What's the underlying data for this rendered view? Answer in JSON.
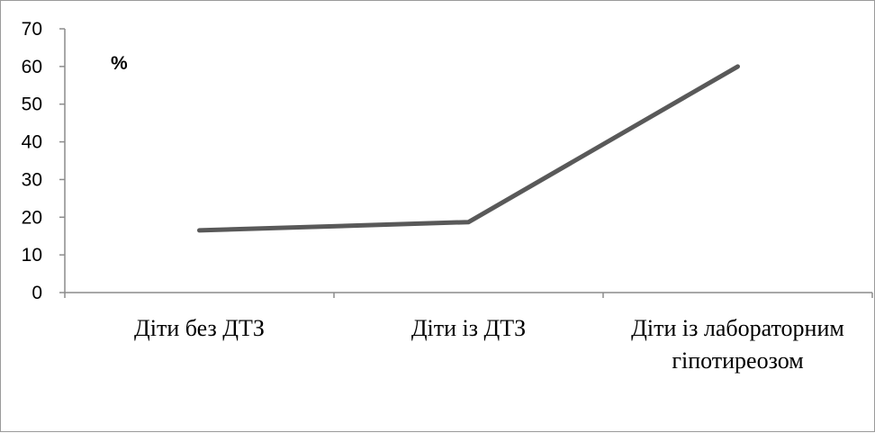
{
  "chart_data": {
    "type": "line",
    "unit_label": "%",
    "categories": [
      [
        "Діти без ДТЗ"
      ],
      [
        "Діти із ДТЗ"
      ],
      [
        "Діти із лабораторним",
        "гіпотиреозом"
      ]
    ],
    "series": [
      {
        "values": [
          16.5,
          18.7,
          60
        ],
        "color": "#595959"
      }
    ],
    "ylim": [
      0,
      70
    ],
    "yticks": [
      0,
      10,
      20,
      30,
      40,
      50,
      60,
      70
    ],
    "grid": false,
    "legend": "none"
  }
}
